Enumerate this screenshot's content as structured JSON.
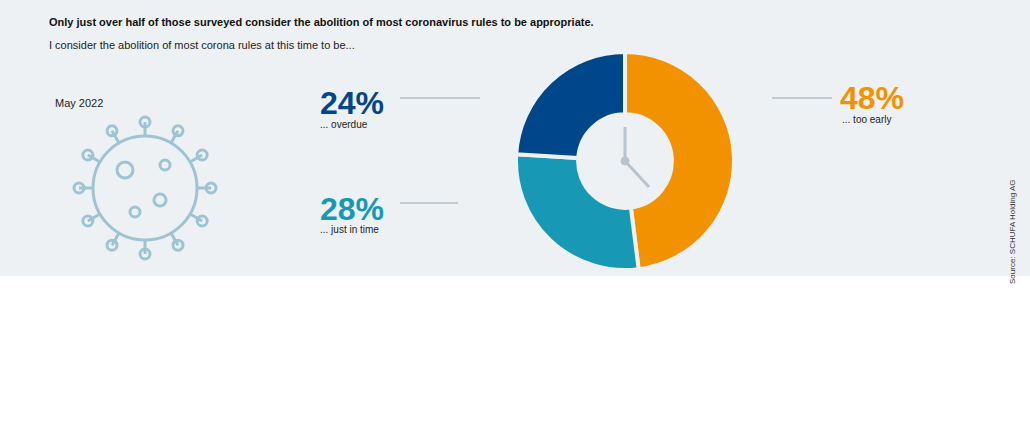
{
  "chart_data": {
    "type": "donut",
    "title": "Only just over half of those surveyed consider the abolition of most coronavirus rules to be appropriate.",
    "subtitle": "I consider the abolition of most corona rules at this time to be...",
    "annotations": [
      "May 2022",
      "Source: SCHUFA Holding AG"
    ],
    "categories": [
      "... too early",
      "... just in time",
      "... overdue"
    ],
    "values": [
      48,
      28,
      24
    ],
    "value_labels": [
      "48%",
      "28%",
      "24%"
    ],
    "colors": [
      "#f39200",
      "#1798b4",
      "#00468b"
    ],
    "data_labels": true
  }
}
